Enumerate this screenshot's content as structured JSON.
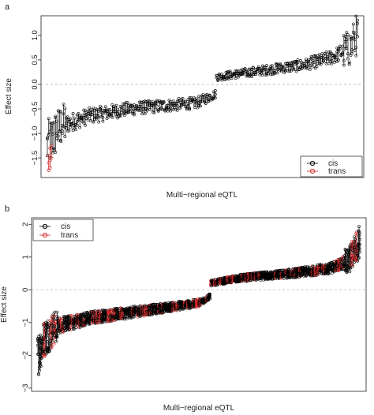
{
  "chart_data": [
    {
      "panel": "a",
      "type": "scatter",
      "xlabel": "Multi−regional eQTL",
      "ylabel": "Effect size",
      "ylim": [
        -1.9,
        1.4
      ],
      "yticks": [
        "1.0",
        "0.5",
        "0.0",
        "−0.5",
        "−1.0",
        "−1.5"
      ],
      "ytick_values": [
        1.0,
        0.5,
        0.0,
        -0.5,
        -1.0,
        -1.5
      ],
      "reference_line": 0,
      "legend": {
        "position": "bottom-right",
        "entries": [
          "cis",
          "trans"
        ]
      },
      "series": [
        {
          "name": "cis",
          "color": "#000000",
          "n_eqtl": 230,
          "sorted_effect_anchors": [
            [
              0,
              -1.25
            ],
            [
              10,
              -0.85
            ],
            [
              30,
              -0.65
            ],
            [
              60,
              -0.5
            ],
            [
              110,
              -0.38
            ],
            [
              124,
              -0.2
            ],
            [
              125,
              0.15
            ],
            [
              150,
              0.25
            ],
            [
              190,
              0.4
            ],
            [
              210,
              0.55
            ],
            [
              224,
              0.75
            ],
            [
              229,
              1.05
            ]
          ]
        },
        {
          "name": "trans",
          "color": "#d62728",
          "n_eqtl": 3,
          "points": [
            [
              1,
              -1.45
            ],
            [
              1,
              -1.6
            ],
            [
              1,
              -1.75
            ],
            [
              2,
              -1.3
            ],
            [
              2,
              -1.55
            ],
            [
              2,
              -1.7
            ],
            [
              3,
              -1.25
            ],
            [
              3,
              -1.5
            ]
          ]
        }
      ]
    },
    {
      "panel": "b",
      "type": "scatter",
      "xlabel": "Multi−regional eQTL",
      "ylabel": "Effect size",
      "ylim": [
        -3.1,
        2.2
      ],
      "yticks": [
        "2",
        "1",
        "0",
        "−1",
        "−2",
        "−3"
      ],
      "ytick_values": [
        2,
        1,
        0,
        -1,
        -2,
        -3
      ],
      "reference_line": 0,
      "legend": {
        "position": "top-left",
        "entries": [
          "cis",
          "trans"
        ]
      },
      "series": [
        {
          "name": "cis",
          "color": "#000000",
          "n_eqtl": 420,
          "sorted_effect_anchors": [
            [
              0,
              -2.0
            ],
            [
              8,
              -1.5
            ],
            [
              25,
              -1.1
            ],
            [
              70,
              -0.85
            ],
            [
              150,
              -0.6
            ],
            [
              210,
              -0.4
            ],
            [
              224,
              -0.2
            ],
            [
              225,
              0.2
            ],
            [
              260,
              0.35
            ],
            [
              330,
              0.5
            ],
            [
              380,
              0.65
            ],
            [
              405,
              0.9
            ],
            [
              419,
              1.5
            ]
          ]
        },
        {
          "name": "trans",
          "color": "#d62728",
          "trans_fraction": 0.22
        }
      ]
    }
  ]
}
